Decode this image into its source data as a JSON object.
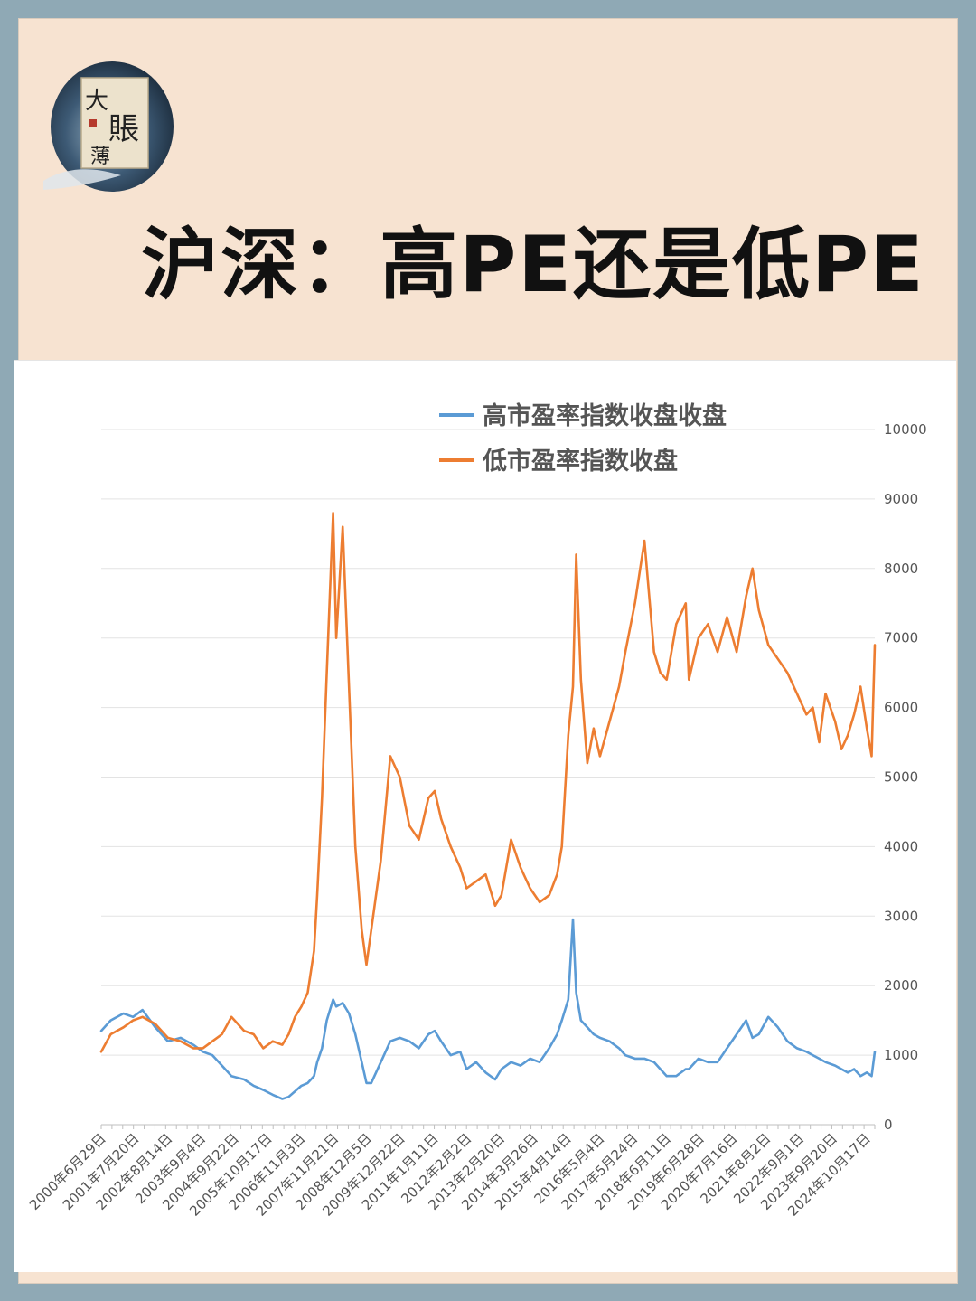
{
  "logo": {
    "char_big": "大",
    "char_mid": "賬",
    "char_small": "薄"
  },
  "title": "沪深：高PE还是低PE",
  "chart_data": {
    "type": "line",
    "ylim": [
      0,
      10000
    ],
    "yticks": [
      0,
      1000,
      2000,
      3000,
      4000,
      5000,
      6000,
      7000,
      8000,
      9000,
      10000
    ],
    "grid": true,
    "legend_position": "top-center",
    "x_tick_labels": [
      "2000年6月29日",
      "2001年7月20日",
      "2002年8月14日",
      "2003年9月4日",
      "2004年9月22日",
      "2005年10月17日",
      "2006年11月3日",
      "2007年11月21日",
      "2008年12月5日",
      "2009年12月22日",
      "2011年1月11日",
      "2012年2月2日",
      "2013年2月20日",
      "2014年3月26日",
      "2015年4月14日",
      "2016年5月4日",
      "2017年5月24日",
      "2018年6月11日",
      "2019年6月28日",
      "2020年7月16日",
      "2021年8月2日",
      "2022年9月1日",
      "2023年9月20日",
      "2024年10月17日"
    ],
    "x": [
      2000.5,
      2000.8,
      2001.2,
      2001.5,
      2001.8,
      2002.2,
      2002.6,
      2003.0,
      2003.4,
      2003.7,
      2004.0,
      2004.3,
      2004.6,
      2005.0,
      2005.3,
      2005.6,
      2005.9,
      2006.2,
      2006.4,
      2006.6,
      2006.8,
      2007.0,
      2007.2,
      2007.3,
      2007.45,
      2007.6,
      2007.8,
      2007.9,
      2008.1,
      2008.3,
      2008.5,
      2008.7,
      2008.85,
      2009.0,
      2009.3,
      2009.6,
      2009.9,
      2010.2,
      2010.5,
      2010.8,
      2011.0,
      2011.2,
      2011.5,
      2011.8,
      2012.0,
      2012.3,
      2012.6,
      2012.9,
      2013.1,
      2013.4,
      2013.7,
      2014.0,
      2014.3,
      2014.6,
      2014.85,
      2015.0,
      2015.2,
      2015.35,
      2015.45,
      2015.6,
      2015.8,
      2016.0,
      2016.2,
      2016.5,
      2016.8,
      2017.0,
      2017.3,
      2017.6,
      2017.9,
      2018.1,
      2018.3,
      2018.6,
      2018.9,
      2019.0,
      2019.3,
      2019.6,
      2019.9,
      2020.2,
      2020.5,
      2020.8,
      2021.0,
      2021.2,
      2021.5,
      2021.8,
      2022.1,
      2022.4,
      2022.7,
      2022.9,
      2023.1,
      2023.3,
      2023.6,
      2023.8,
      2024.0,
      2024.2,
      2024.4,
      2024.6,
      2024.75,
      2024.85
    ],
    "series": [
      {
        "name": "高市盈率指数收盘收盘",
        "color": "#5b9bd5",
        "values": [
          1350,
          1500,
          1600,
          1550,
          1650,
          1400,
          1200,
          1250,
          1150,
          1050,
          1000,
          850,
          700,
          650,
          560,
          500,
          430,
          370,
          400,
          480,
          560,
          600,
          700,
          900,
          1100,
          1500,
          1800,
          1700,
          1750,
          1600,
          1300,
          900,
          600,
          600,
          900,
          1200,
          1250,
          1200,
          1100,
          1300,
          1350,
          1200,
          1000,
          1050,
          800,
          900,
          750,
          650,
          800,
          900,
          850,
          950,
          900,
          1100,
          1300,
          1500,
          1800,
          2950,
          1900,
          1500,
          1400,
          1300,
          1250,
          1200,
          1100,
          1000,
          950,
          950,
          900,
          800,
          700,
          700,
          800,
          800,
          950,
          900,
          900,
          1100,
          1300,
          1500,
          1250,
          1300,
          1550,
          1400,
          1200,
          1100,
          1050,
          1000,
          950,
          900,
          850,
          800,
          750,
          800,
          700,
          750,
          700,
          1050
        ]
      },
      {
        "name": "低市盈率指数收盘",
        "color": "#ed7d31",
        "values": [
          1050,
          1300,
          1400,
          1500,
          1550,
          1450,
          1250,
          1200,
          1100,
          1100,
          1200,
          1300,
          1550,
          1350,
          1300,
          1100,
          1200,
          1150,
          1300,
          1550,
          1700,
          1900,
          2500,
          3300,
          4700,
          6500,
          8800,
          7000,
          8600,
          6300,
          4000,
          2800,
          2300,
          2800,
          3800,
          5300,
          5000,
          4300,
          4100,
          4700,
          4800,
          4400,
          4000,
          3700,
          3400,
          3500,
          3600,
          3150,
          3300,
          4100,
          3700,
          3400,
          3200,
          3300,
          3600,
          4000,
          5600,
          6300,
          8200,
          6400,
          5200,
          5700,
          5300,
          5800,
          6300,
          6800,
          7500,
          8400,
          6800,
          6500,
          6400,
          7200,
          7500,
          6400,
          7000,
          7200,
          6800,
          7300,
          6800,
          7600,
          8000,
          7400,
          6900,
          6700,
          6500,
          6200,
          5900,
          6000,
          5500,
          6200,
          5800,
          5400,
          5600,
          5900,
          6300,
          5700,
          5300,
          6900
        ]
      }
    ]
  }
}
